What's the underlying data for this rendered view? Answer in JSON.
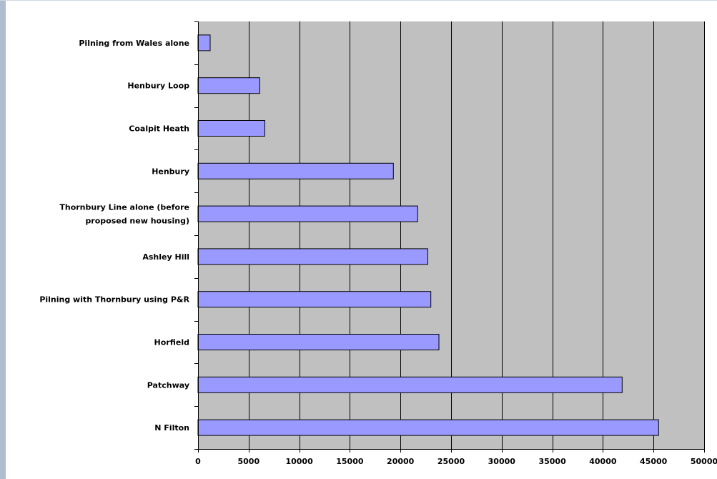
{
  "chart_data": {
    "type": "bar",
    "orientation": "horizontal",
    "categories": [
      "Pilning from Wales alone",
      "Henbury Loop",
      "Coalpit Heath",
      "Henbury",
      "Thornbury Line alone (before proposed new housing)",
      "Ashley Hill",
      "Pilning with Thornbury using P&R",
      "Horfield",
      "Patchway",
      "N Filton"
    ],
    "category_lines": [
      [
        "Pilning from Wales alone"
      ],
      [
        "Henbury Loop"
      ],
      [
        "Coalpit Heath"
      ],
      [
        "Henbury"
      ],
      [
        "Thornbury Line alone (before",
        "proposed new housing)"
      ],
      [
        "Ashley Hill"
      ],
      [
        "Pilning with Thornbury using P&R"
      ],
      [
        "Horfield"
      ],
      [
        "Patchway"
      ],
      [
        "N Filton"
      ]
    ],
    "values": [
      1200,
      6100,
      6600,
      19300,
      21700,
      22700,
      23000,
      23800,
      41900,
      45500
    ],
    "xlim": [
      0,
      50000
    ],
    "xticks": [
      0,
      5000,
      10000,
      15000,
      20000,
      25000,
      30000,
      35000,
      40000,
      45000,
      50000
    ],
    "title": "",
    "xlabel": "",
    "ylabel": "",
    "grid": "vertical",
    "legend": "none",
    "colors": {
      "plot_background": "#c0c0c0",
      "bar_fill": "#9999ff",
      "bar_stroke": "#000000",
      "gridline": "#000000"
    }
  }
}
